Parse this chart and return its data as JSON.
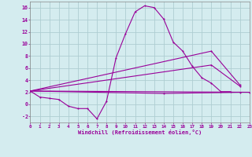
{
  "title": "",
  "xlabel": "Windchill (Refroidissement éolien,°C)",
  "ylabel": "",
  "background_color": "#d4ecef",
  "grid_color": "#aecdd2",
  "line_color": "#990099",
  "xlim": [
    0,
    23
  ],
  "ylim": [
    -3,
    17
  ],
  "xticks": [
    0,
    1,
    2,
    3,
    4,
    5,
    6,
    7,
    8,
    9,
    10,
    11,
    12,
    13,
    14,
    15,
    16,
    17,
    18,
    19,
    20,
    21,
    22,
    23
  ],
  "yticks": [
    -2,
    0,
    2,
    4,
    6,
    8,
    10,
    12,
    14,
    16
  ],
  "curve1_x": [
    0,
    1,
    2,
    3,
    4,
    5,
    6,
    7,
    8,
    9,
    10,
    11,
    12,
    13,
    14,
    15,
    16,
    17,
    18,
    19,
    20,
    21
  ],
  "curve1_y": [
    2.2,
    1.2,
    1.0,
    0.8,
    -0.3,
    -0.7,
    -0.7,
    -2.4,
    0.5,
    7.7,
    11.7,
    15.3,
    16.3,
    16.0,
    14.1,
    10.3,
    8.8,
    6.3,
    4.4,
    3.5,
    2.1,
    2.1
  ],
  "curve2_x": [
    0,
    23
  ],
  "curve2_y": [
    2.2,
    2.0
  ],
  "curve3_x": [
    0,
    19,
    22
  ],
  "curve3_y": [
    2.2,
    6.5,
    3.0
  ],
  "curve4_x": [
    0,
    19,
    22
  ],
  "curve4_y": [
    2.2,
    8.8,
    3.2
  ],
  "curve5_x": [
    0,
    14,
    22
  ],
  "curve5_y": [
    2.2,
    1.8,
    2.0
  ]
}
